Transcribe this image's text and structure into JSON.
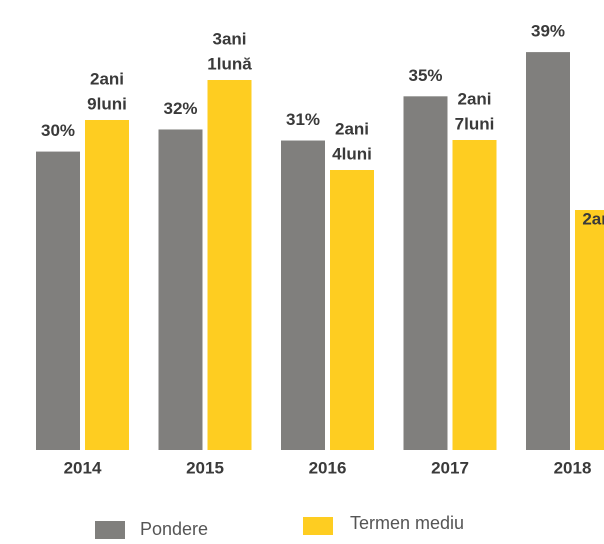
{
  "chart_data": {
    "type": "bar",
    "categories": [
      "2014",
      "2015",
      "2016",
      "2017",
      "2018"
    ],
    "series": [
      {
        "name": "Pondere",
        "color": "#807f7d",
        "values": [
          30,
          32,
          31,
          35,
          39
        ],
        "value_labels": [
          "30%",
          "32%",
          "31%",
          "35%",
          "39%"
        ]
      },
      {
        "name": "Termen mediu",
        "color": "#fecd21",
        "axis": "y2",
        "values": [
          33,
          37,
          28,
          31,
          24
        ],
        "value_labels": [
          [
            "2ani",
            "9luni"
          ],
          [
            "3ani",
            "1lună"
          ],
          [
            "2ani",
            "4luni"
          ],
          [
            "2ani",
            "7luni"
          ],
          [
            "2an"
          ]
        ]
      }
    ],
    "ylim": [
      3,
      41
    ],
    "y2lim": [
      0,
      42
    ]
  }
}
